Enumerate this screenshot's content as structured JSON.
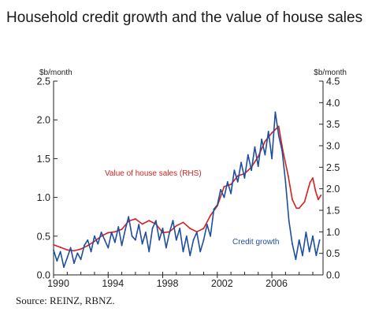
{
  "title": "Household credit growth and the value of house sales",
  "source": "Source: REINZ, RBNZ.",
  "chart_data": {
    "type": "line",
    "title": "Household credit growth and the value of house sales",
    "left_axis": {
      "unit": "$b/month",
      "ylim": [
        0.0,
        2.5
      ],
      "ticks": [
        "0.0",
        "0.5",
        "1.0",
        "1.5",
        "2.0",
        "2.5"
      ]
    },
    "right_axis": {
      "unit": "$b/month",
      "ylim": [
        0.0,
        4.5
      ],
      "ticks": [
        "0.0",
        "0.5",
        "1.0",
        "1.5",
        "2.0",
        "2.5",
        "3.0",
        "3.5",
        "4.0",
        "4.5"
      ]
    },
    "x_axis": {
      "xlim": [
        1990,
        2009.75
      ],
      "ticks": [
        "1990",
        "1994",
        "1998",
        "2002",
        "2006"
      ]
    },
    "grid": false,
    "colors": {
      "house_sales": "#d42020",
      "credit_growth": "#1f4e9c"
    },
    "series": [
      {
        "key": "house_sales",
        "name": "Value of house sales (RHS)",
        "axis": "right",
        "color": "#d42020",
        "x": [
          1990.0,
          1990.5,
          1991.0,
          1991.5,
          1992.0,
          1992.5,
          1993.0,
          1993.5,
          1994.0,
          1994.5,
          1995.0,
          1995.5,
          1996.0,
          1996.5,
          1997.0,
          1997.5,
          1998.0,
          1998.5,
          1999.0,
          1999.5,
          2000.0,
          2000.5,
          2001.0,
          2001.5,
          2002.0,
          2002.5,
          2003.0,
          2003.5,
          2004.0,
          2004.5,
          2005.0,
          2005.5,
          2006.0,
          2006.5,
          2006.8,
          2007.2,
          2007.5,
          2007.8,
          2008.0,
          2008.4,
          2008.8,
          2009.0,
          2009.2,
          2009.4,
          2009.6
        ],
        "values": [
          0.7,
          0.64,
          0.58,
          0.56,
          0.6,
          0.68,
          0.78,
          0.9,
          0.98,
          1.0,
          1.06,
          1.25,
          1.3,
          1.18,
          1.26,
          1.18,
          0.98,
          1.0,
          1.14,
          1.22,
          1.08,
          1.0,
          1.08,
          1.38,
          1.6,
          2.05,
          2.1,
          2.3,
          2.35,
          2.5,
          2.75,
          3.1,
          3.3,
          3.45,
          2.9,
          2.3,
          1.75,
          1.55,
          1.55,
          1.7,
          2.15,
          2.25,
          1.95,
          1.75,
          1.85
        ]
      },
      {
        "key": "credit_growth",
        "name": "Credit growth",
        "axis": "left",
        "color": "#1f4e9c",
        "x": [
          1990.0,
          1990.25,
          1990.5,
          1990.75,
          1991.0,
          1991.25,
          1991.5,
          1991.75,
          1992.0,
          1992.25,
          1992.5,
          1992.75,
          1993.0,
          1993.25,
          1993.5,
          1993.75,
          1994.0,
          1994.25,
          1994.5,
          1994.75,
          1995.0,
          1995.25,
          1995.5,
          1995.75,
          1996.0,
          1996.25,
          1996.5,
          1996.75,
          1997.0,
          1997.25,
          1997.5,
          1997.75,
          1998.0,
          1998.25,
          1998.5,
          1998.75,
          1999.0,
          1999.25,
          1999.5,
          1999.75,
          2000.0,
          2000.25,
          2000.5,
          2000.75,
          2001.0,
          2001.25,
          2001.5,
          2001.75,
          2002.0,
          2002.25,
          2002.5,
          2002.75,
          2003.0,
          2003.25,
          2003.5,
          2003.75,
          2004.0,
          2004.25,
          2004.5,
          2004.75,
          2005.0,
          2005.25,
          2005.5,
          2005.75,
          2006.0,
          2006.25,
          2006.5,
          2006.75,
          2007.0,
          2007.25,
          2007.5,
          2007.75,
          2008.0,
          2008.25,
          2008.5,
          2008.75,
          2009.0,
          2009.25,
          2009.5
        ],
        "values": [
          0.32,
          0.18,
          0.3,
          0.1,
          0.22,
          0.35,
          0.15,
          0.28,
          0.2,
          0.38,
          0.45,
          0.3,
          0.5,
          0.4,
          0.55,
          0.45,
          0.35,
          0.55,
          0.42,
          0.62,
          0.38,
          0.58,
          0.75,
          0.5,
          0.45,
          0.65,
          0.4,
          0.55,
          0.3,
          0.6,
          0.7,
          0.45,
          0.6,
          0.35,
          0.55,
          0.7,
          0.45,
          0.6,
          0.3,
          0.5,
          0.25,
          0.45,
          0.55,
          0.3,
          0.45,
          0.65,
          0.5,
          0.85,
          0.9,
          1.1,
          1.0,
          1.2,
          1.05,
          1.35,
          1.2,
          1.45,
          1.25,
          1.55,
          1.35,
          1.65,
          1.4,
          1.75,
          1.55,
          1.85,
          1.5,
          2.1,
          1.8,
          1.6,
          1.2,
          0.7,
          0.4,
          0.2,
          0.45,
          0.25,
          0.55,
          0.3,
          0.5,
          0.25,
          0.45
        ]
      }
    ]
  }
}
